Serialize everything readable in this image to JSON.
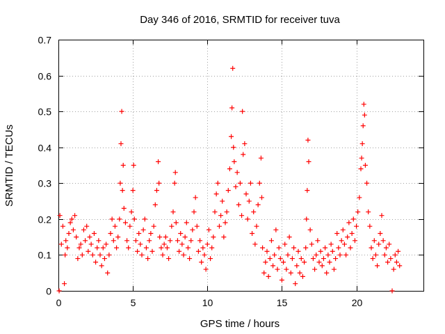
{
  "chart_data": {
    "type": "scatter",
    "title": "Day 346 of 2016, SRMTID for receiver tuva",
    "xlabel": "GPS time / hours",
    "ylabel": "SRMTID / TECUs",
    "xlim": [
      0,
      24.5
    ],
    "ylim": [
      0,
      0.7
    ],
    "grid": true,
    "marker": "+",
    "color": "#ff0000",
    "x_ticks": [
      0,
      5,
      10,
      15,
      20
    ],
    "y_ticks": [
      0,
      0.1,
      0.2,
      0.3,
      0.4,
      0.5,
      0.6,
      0.7
    ],
    "x_tick_labels": [
      "0",
      "5",
      "10",
      "15",
      "20"
    ],
    "y_tick_labels": [
      "0",
      "0.1",
      "0.2",
      "0.3",
      "0.4",
      "0.5",
      "0.6",
      "0.7"
    ],
    "series": [
      {
        "name": "SRMTID",
        "points": [
          [
            0.05,
            0.0
          ],
          [
            0.1,
            0.21
          ],
          [
            0.2,
            0.13
          ],
          [
            0.3,
            0.18
          ],
          [
            0.4,
            0.02
          ],
          [
            0.45,
            0.1
          ],
          [
            0.5,
            0.14
          ],
          [
            0.6,
            0.12
          ],
          [
            0.7,
            0.16
          ],
          [
            0.8,
            0.19
          ],
          [
            0.9,
            0.2
          ],
          [
            1.0,
            0.17
          ],
          [
            1.1,
            0.21
          ],
          [
            1.2,
            0.15
          ],
          [
            1.3,
            0.09
          ],
          [
            1.4,
            0.12
          ],
          [
            1.5,
            0.13
          ],
          [
            1.6,
            0.1
          ],
          [
            1.7,
            0.17
          ],
          [
            1.8,
            0.14
          ],
          [
            1.9,
            0.18
          ],
          [
            2.0,
            0.11
          ],
          [
            2.1,
            0.15
          ],
          [
            2.2,
            0.13
          ],
          [
            2.3,
            0.1
          ],
          [
            2.4,
            0.16
          ],
          [
            2.5,
            0.08
          ],
          [
            2.6,
            0.12
          ],
          [
            2.7,
            0.14
          ],
          [
            2.8,
            0.1
          ],
          [
            2.9,
            0.07
          ],
          [
            3.0,
            0.12
          ],
          [
            3.1,
            0.09
          ],
          [
            3.2,
            0.13
          ],
          [
            3.3,
            0.05
          ],
          [
            3.4,
            0.1
          ],
          [
            3.5,
            0.16
          ],
          [
            3.6,
            0.2
          ],
          [
            3.7,
            0.14
          ],
          [
            3.8,
            0.18
          ],
          [
            3.9,
            0.12
          ],
          [
            4.0,
            0.15
          ],
          [
            4.1,
            0.2
          ],
          [
            4.15,
            0.3
          ],
          [
            4.2,
            0.41
          ],
          [
            4.25,
            0.5
          ],
          [
            4.3,
            0.28
          ],
          [
            4.35,
            0.35
          ],
          [
            4.4,
            0.23
          ],
          [
            4.5,
            0.19
          ],
          [
            4.6,
            0.14
          ],
          [
            4.7,
            0.12
          ],
          [
            4.8,
            0.18
          ],
          [
            4.9,
            0.22
          ],
          [
            5.0,
            0.28
          ],
          [
            5.05,
            0.35
          ],
          [
            5.1,
            0.2
          ],
          [
            5.2,
            0.14
          ],
          [
            5.3,
            0.11
          ],
          [
            5.4,
            0.16
          ],
          [
            5.5,
            0.13
          ],
          [
            5.6,
            0.1
          ],
          [
            5.7,
            0.17
          ],
          [
            5.8,
            0.2
          ],
          [
            5.9,
            0.12
          ],
          [
            6.0,
            0.09
          ],
          [
            6.1,
            0.14
          ],
          [
            6.2,
            0.16
          ],
          [
            6.3,
            0.11
          ],
          [
            6.4,
            0.18
          ],
          [
            6.5,
            0.24
          ],
          [
            6.6,
            0.28
          ],
          [
            6.7,
            0.36
          ],
          [
            6.75,
            0.3
          ],
          [
            6.8,
            0.15
          ],
          [
            6.9,
            0.12
          ],
          [
            7.0,
            0.1
          ],
          [
            7.1,
            0.13
          ],
          [
            7.2,
            0.15
          ],
          [
            7.3,
            0.12
          ],
          [
            7.4,
            0.09
          ],
          [
            7.5,
            0.14
          ],
          [
            7.6,
            0.18
          ],
          [
            7.7,
            0.22
          ],
          [
            7.8,
            0.3
          ],
          [
            7.85,
            0.33
          ],
          [
            7.9,
            0.19
          ],
          [
            8.0,
            0.14
          ],
          [
            8.1,
            0.11
          ],
          [
            8.2,
            0.16
          ],
          [
            8.3,
            0.13
          ],
          [
            8.4,
            0.1
          ],
          [
            8.5,
            0.15
          ],
          [
            8.6,
            0.19
          ],
          [
            8.7,
            0.12
          ],
          [
            8.8,
            0.09
          ],
          [
            8.9,
            0.14
          ],
          [
            9.0,
            0.17
          ],
          [
            9.1,
            0.22
          ],
          [
            9.2,
            0.26
          ],
          [
            9.3,
            0.18
          ],
          [
            9.4,
            0.11
          ],
          [
            9.5,
            0.14
          ],
          [
            9.6,
            0.08
          ],
          [
            9.7,
            0.12
          ],
          [
            9.8,
            0.1
          ],
          [
            9.9,
            0.06
          ],
          [
            10.0,
            0.13
          ],
          [
            10.1,
            0.17
          ],
          [
            10.2,
            0.09
          ],
          [
            10.3,
            0.12
          ],
          [
            10.4,
            0.15
          ],
          [
            10.5,
            0.22
          ],
          [
            10.6,
            0.27
          ],
          [
            10.7,
            0.3
          ],
          [
            10.8,
            0.18
          ],
          [
            10.9,
            0.21
          ],
          [
            11.0,
            0.25
          ],
          [
            11.1,
            0.15
          ],
          [
            11.2,
            0.19
          ],
          [
            11.3,
            0.22
          ],
          [
            11.4,
            0.28
          ],
          [
            11.5,
            0.34
          ],
          [
            11.6,
            0.43
          ],
          [
            11.65,
            0.51
          ],
          [
            11.7,
            0.62
          ],
          [
            11.75,
            0.4
          ],
          [
            11.8,
            0.36
          ],
          [
            11.9,
            0.29
          ],
          [
            12.0,
            0.33
          ],
          [
            12.1,
            0.24
          ],
          [
            12.2,
            0.3
          ],
          [
            12.3,
            0.21
          ],
          [
            12.35,
            0.5
          ],
          [
            12.4,
            0.38
          ],
          [
            12.5,
            0.41
          ],
          [
            12.6,
            0.27
          ],
          [
            12.7,
            0.2
          ],
          [
            12.8,
            0.25
          ],
          [
            12.9,
            0.3
          ],
          [
            13.0,
            0.16
          ],
          [
            13.1,
            0.22
          ],
          [
            13.2,
            0.13
          ],
          [
            13.3,
            0.18
          ],
          [
            13.4,
            0.24
          ],
          [
            13.5,
            0.3
          ],
          [
            13.6,
            0.37
          ],
          [
            13.65,
            0.26
          ],
          [
            13.7,
            0.12
          ],
          [
            13.8,
            0.05
          ],
          [
            13.9,
            0.08
          ],
          [
            14.0,
            0.11
          ],
          [
            14.1,
            0.04
          ],
          [
            14.2,
            0.09
          ],
          [
            14.3,
            0.14
          ],
          [
            14.4,
            0.07
          ],
          [
            14.5,
            0.1
          ],
          [
            14.6,
            0.17
          ],
          [
            14.7,
            0.06
          ],
          [
            14.8,
            0.12
          ],
          [
            14.9,
            0.09
          ],
          [
            15.0,
            0.03
          ],
          [
            15.1,
            0.08
          ],
          [
            15.2,
            0.13
          ],
          [
            15.3,
            0.06
          ],
          [
            15.4,
            0.1
          ],
          [
            15.5,
            0.15
          ],
          [
            15.6,
            0.05
          ],
          [
            15.7,
            0.09
          ],
          [
            15.8,
            0.12
          ],
          [
            15.9,
            0.02
          ],
          [
            16.0,
            0.07
          ],
          [
            16.1,
            0.11
          ],
          [
            16.2,
            0.05
          ],
          [
            16.3,
            0.09
          ],
          [
            16.4,
            0.04
          ],
          [
            16.5,
            0.08
          ],
          [
            16.6,
            0.12
          ],
          [
            16.65,
            0.2
          ],
          [
            16.7,
            0.28
          ],
          [
            16.75,
            0.42
          ],
          [
            16.8,
            0.36
          ],
          [
            16.9,
            0.17
          ],
          [
            17.0,
            0.13
          ],
          [
            17.1,
            0.09
          ],
          [
            17.2,
            0.06
          ],
          [
            17.3,
            0.1
          ],
          [
            17.4,
            0.14
          ],
          [
            17.5,
            0.08
          ],
          [
            17.6,
            0.11
          ],
          [
            17.7,
            0.07
          ],
          [
            17.8,
            0.09
          ],
          [
            17.9,
            0.12
          ],
          [
            18.0,
            0.05
          ],
          [
            18.1,
            0.1
          ],
          [
            18.2,
            0.08
          ],
          [
            18.3,
            0.13
          ],
          [
            18.4,
            0.11
          ],
          [
            18.5,
            0.06
          ],
          [
            18.6,
            0.09
          ],
          [
            18.7,
            0.16
          ],
          [
            18.8,
            0.12
          ],
          [
            18.9,
            0.1
          ],
          [
            19.0,
            0.14
          ],
          [
            19.1,
            0.17
          ],
          [
            19.2,
            0.13
          ],
          [
            19.3,
            0.1
          ],
          [
            19.4,
            0.15
          ],
          [
            19.5,
            0.19
          ],
          [
            19.6,
            0.12
          ],
          [
            19.7,
            0.16
          ],
          [
            19.8,
            0.2
          ],
          [
            19.9,
            0.14
          ],
          [
            20.0,
            0.18
          ],
          [
            20.1,
            0.22
          ],
          [
            20.2,
            0.26
          ],
          [
            20.3,
            0.34
          ],
          [
            20.35,
            0.37
          ],
          [
            20.4,
            0.41
          ],
          [
            20.45,
            0.46
          ],
          [
            20.5,
            0.52
          ],
          [
            20.55,
            0.49
          ],
          [
            20.6,
            0.35
          ],
          [
            20.7,
            0.3
          ],
          [
            20.8,
            0.22
          ],
          [
            20.9,
            0.18
          ],
          [
            21.0,
            0.12
          ],
          [
            21.1,
            0.09
          ],
          [
            21.2,
            0.14
          ],
          [
            21.3,
            0.1
          ],
          [
            21.4,
            0.07
          ],
          [
            21.5,
            0.13
          ],
          [
            21.6,
            0.16
          ],
          [
            21.7,
            0.21
          ],
          [
            21.8,
            0.14
          ],
          [
            21.9,
            0.1
          ],
          [
            22.0,
            0.12
          ],
          [
            22.1,
            0.08
          ],
          [
            22.2,
            0.13
          ],
          [
            22.3,
            0.09
          ],
          [
            22.4,
            0.0
          ],
          [
            22.5,
            0.06
          ],
          [
            22.6,
            0.1
          ],
          [
            22.7,
            0.08
          ],
          [
            22.8,
            0.11
          ],
          [
            22.9,
            0.07
          ]
        ]
      }
    ]
  }
}
